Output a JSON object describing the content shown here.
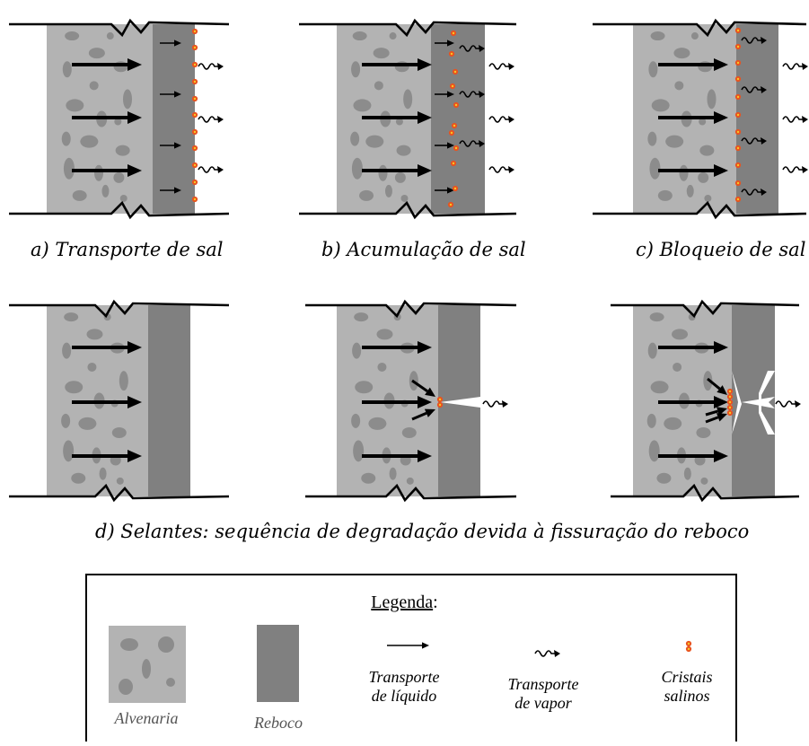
{
  "panels": [
    {
      "caption": "a) Transporte de sal",
      "stage": "transport"
    },
    {
      "caption": "b) Acumulação de sal",
      "stage": "accumulation"
    },
    {
      "caption": "c) Bloqueio de sal",
      "stage": "blocking"
    },
    {
      "stage": "intact"
    },
    {
      "stage": "crack"
    },
    {
      "stage": "crack-crystals"
    }
  ],
  "caption_d": "d) Selantes: sequência de degradação devida à fissuração do reboco",
  "legend": {
    "title": "Legenda",
    "title_suffix": ":",
    "items": [
      {
        "key": "alvenaria",
        "lines": [
          "Alvenaria"
        ]
      },
      {
        "key": "reboco",
        "lines": [
          "Reboco"
        ]
      },
      {
        "key": "liquid",
        "lines": [
          "Transporte",
          "de líquido"
        ]
      },
      {
        "key": "vapor",
        "lines": [
          "Transporte",
          "de vapor"
        ]
      },
      {
        "key": "crystals",
        "lines": [
          "Cristais",
          "salinos"
        ]
      }
    ]
  },
  "colors": {
    "masonry": "#b3b3b3",
    "stone": "#8c8c8c",
    "stone_light": "#9a9a9a",
    "render": "#808080",
    "crystal_fill": "#e8531f",
    "crystal_core": "#f7c624",
    "line": "#000000"
  },
  "icons": [
    "liquid-arrow-icon",
    "vapor-squiggle-icon",
    "salt-crystal-icon"
  ]
}
